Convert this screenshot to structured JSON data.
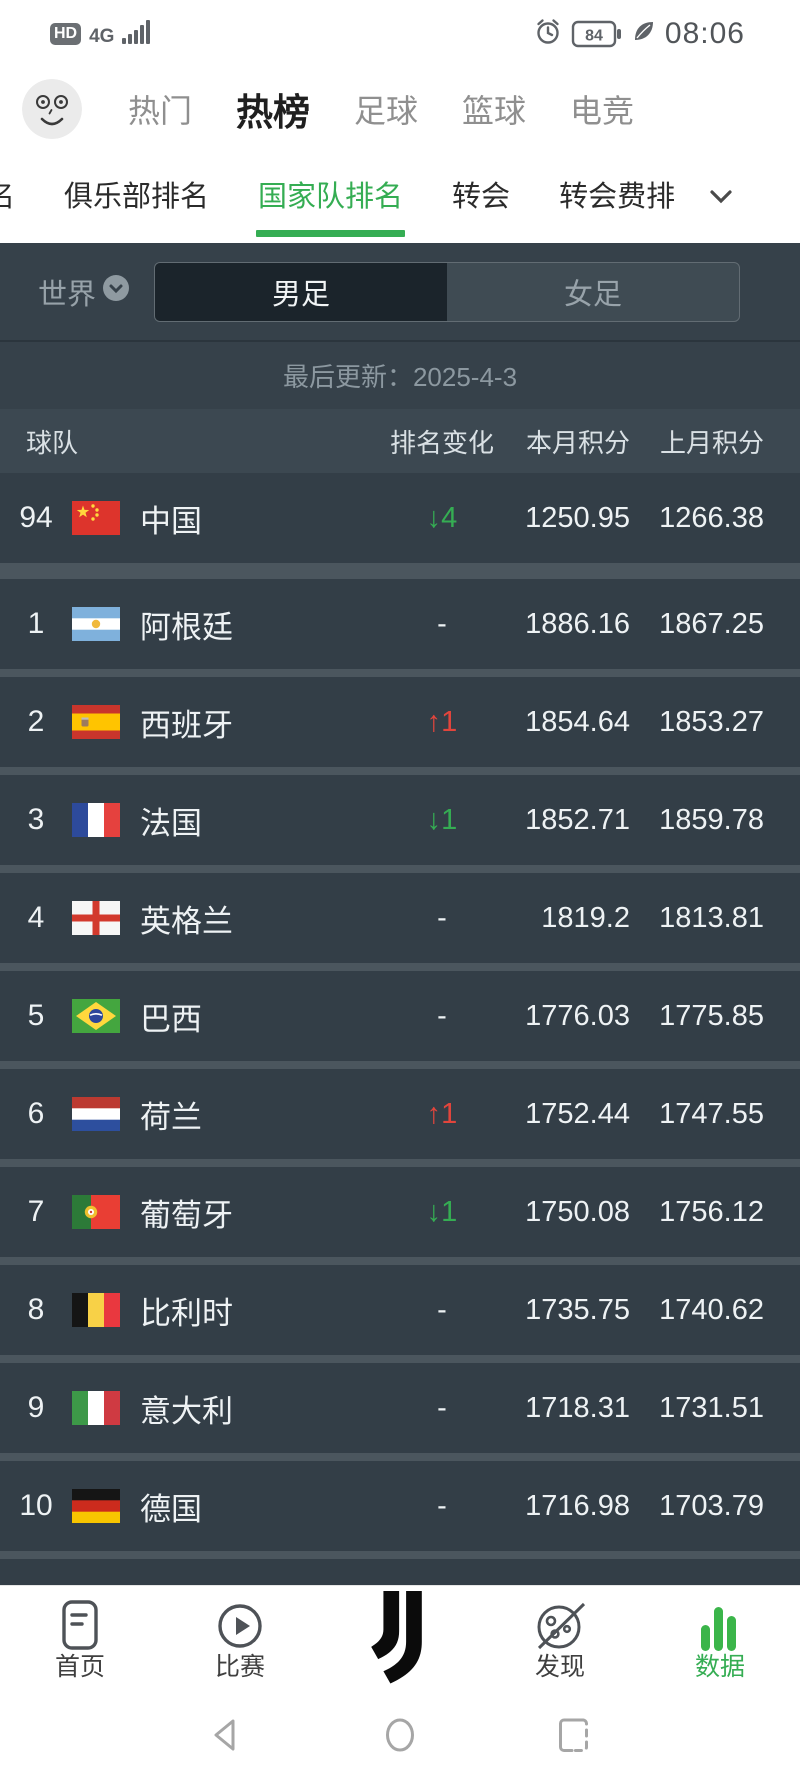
{
  "status_bar": {
    "hd_badge": "HD",
    "network": "4G",
    "battery_level": "84",
    "time": "08:06",
    "left_icons": [
      "hd-badge",
      "signal-bars-icon"
    ],
    "right_icons": [
      "alarm-icon",
      "battery-icon",
      "leaf-icon"
    ]
  },
  "header": {
    "avatar": "smiley-avatar",
    "tabs": [
      {
        "label": "热门",
        "active": false
      },
      {
        "label": "热榜",
        "active": true
      },
      {
        "label": "足球",
        "active": false
      },
      {
        "label": "篮球",
        "active": false
      },
      {
        "label": "电竞",
        "active": false
      }
    ]
  },
  "sub_nav": {
    "tabs": [
      {
        "label": "名",
        "active": false
      },
      {
        "label": "俱乐部排名",
        "active": false
      },
      {
        "label": "国家队排名",
        "active": true
      },
      {
        "label": "转会",
        "active": false
      },
      {
        "label": "转会费排",
        "active": false
      }
    ],
    "more_icon": "chevron-down-icon"
  },
  "filters": {
    "region_label": "世界",
    "region_icon": "chevron-circle-icon",
    "gender_toggle": [
      {
        "label": "男足",
        "active": true
      },
      {
        "label": "女足",
        "active": false
      }
    ]
  },
  "update_bar": {
    "text": "最后更新：2025-4-3"
  },
  "table": {
    "headers": {
      "team": "球队",
      "change": "排名变化",
      "current": "本月积分",
      "previous": "上月积分"
    },
    "rows": [
      {
        "rank": "94",
        "flag": "cn",
        "team": "中国",
        "dir": "down",
        "change": "4",
        "current": "1250.95",
        "previous": "1266.38"
      },
      {
        "rank": "1",
        "flag": "ar",
        "team": "阿根廷",
        "dir": "none",
        "change": "-",
        "current": "1886.16",
        "previous": "1867.25"
      },
      {
        "rank": "2",
        "flag": "es",
        "team": "西班牙",
        "dir": "up",
        "change": "1",
        "current": "1854.64",
        "previous": "1853.27"
      },
      {
        "rank": "3",
        "flag": "fr",
        "team": "法国",
        "dir": "down",
        "change": "1",
        "current": "1852.71",
        "previous": "1859.78"
      },
      {
        "rank": "4",
        "flag": "en",
        "team": "英格兰",
        "dir": "none",
        "change": "-",
        "current": "1819.2",
        "previous": "1813.81"
      },
      {
        "rank": "5",
        "flag": "br",
        "team": "巴西",
        "dir": "none",
        "change": "-",
        "current": "1776.03",
        "previous": "1775.85"
      },
      {
        "rank": "6",
        "flag": "nl",
        "team": "荷兰",
        "dir": "up",
        "change": "1",
        "current": "1752.44",
        "previous": "1747.55"
      },
      {
        "rank": "7",
        "flag": "pt",
        "team": "葡萄牙",
        "dir": "down",
        "change": "1",
        "current": "1750.08",
        "previous": "1756.12"
      },
      {
        "rank": "8",
        "flag": "be",
        "team": "比利时",
        "dir": "none",
        "change": "-",
        "current": "1735.75",
        "previous": "1740.62"
      },
      {
        "rank": "9",
        "flag": "it",
        "team": "意大利",
        "dir": "none",
        "change": "-",
        "current": "1718.31",
        "previous": "1731.51"
      },
      {
        "rank": "10",
        "flag": "de",
        "team": "德国",
        "dir": "none",
        "change": "-",
        "current": "1716.98",
        "previous": "1703.79"
      }
    ]
  },
  "bottom_nav": {
    "items": [
      {
        "label": "首页",
        "icon": "home-icon",
        "active": false
      },
      {
        "label": "比赛",
        "icon": "matches-icon",
        "active": false
      },
      {
        "label": "",
        "icon": "juventus-logo",
        "active": false
      },
      {
        "label": "发现",
        "icon": "discover-icon",
        "active": false
      },
      {
        "label": "数据",
        "icon": "data-bars-icon",
        "active": true
      }
    ]
  },
  "android_nav": {
    "buttons": [
      "back-icon",
      "home-circle-icon",
      "recents-icon"
    ]
  },
  "colors": {
    "accent_green": "#35ad53",
    "accent_red": "#e2453c",
    "dark_bg": "#36414a",
    "row_bg": "#333e47"
  }
}
